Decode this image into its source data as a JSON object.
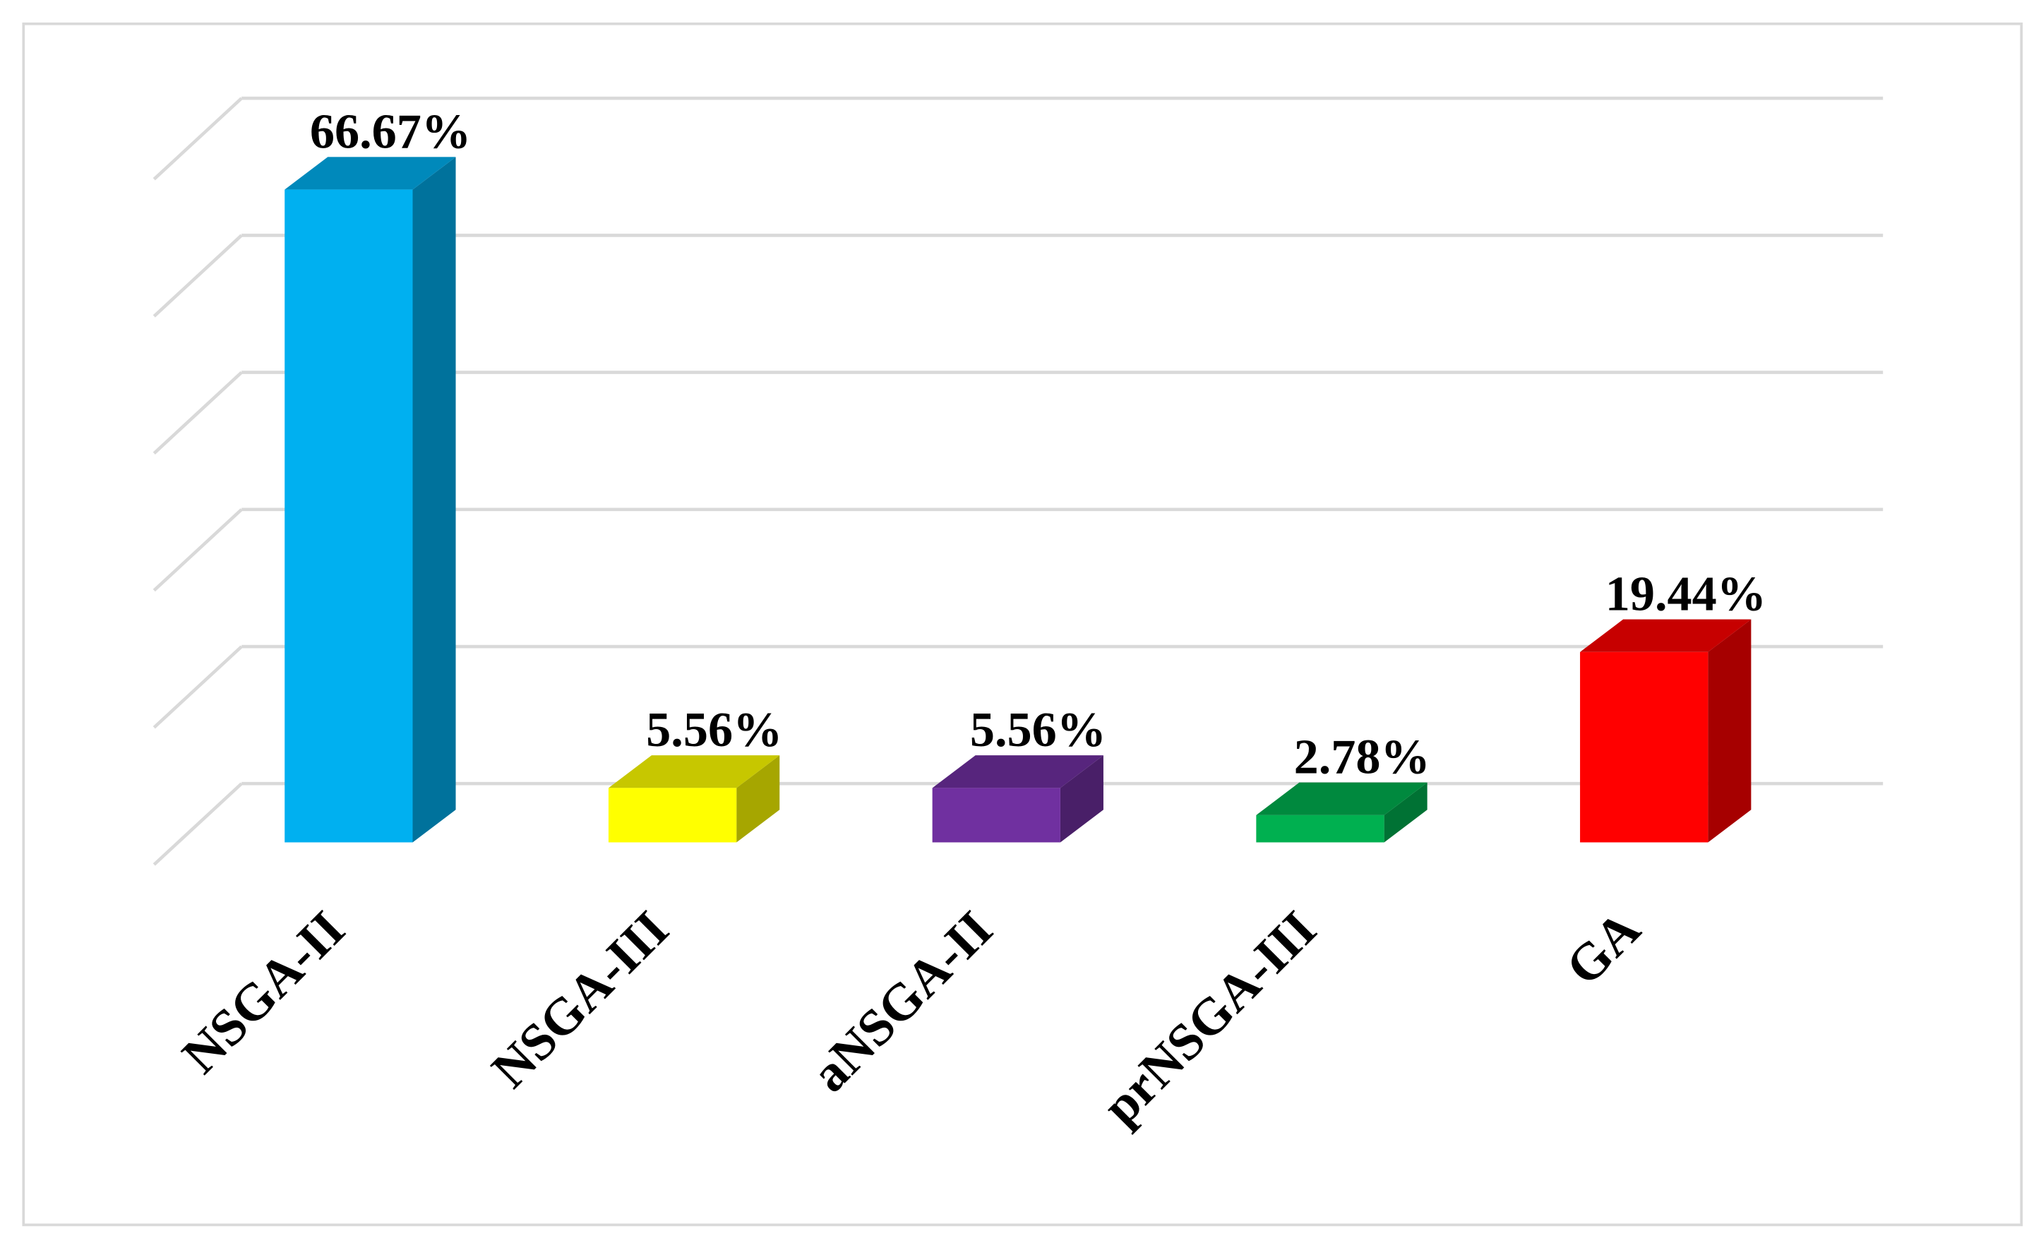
{
  "chart_data": {
    "type": "bar3d",
    "categories": [
      "NSGA-II",
      "NSGA-III",
      "aNSGA-II",
      "prNSGA-III",
      "GA"
    ],
    "values": [
      66.67,
      5.56,
      5.56,
      2.78,
      19.44
    ],
    "value_labels": [
      "66.67%",
      "5.56%",
      "5.56%",
      "2.78%",
      "19.44%"
    ],
    "colors": [
      "#00b0f0",
      "#ffff00",
      "#7030a0",
      "#00b050",
      "#ff0000"
    ],
    "ylim": [
      0,
      70
    ],
    "yticks": [
      0,
      14,
      28,
      42,
      56,
      70
    ],
    "grid": true
  }
}
